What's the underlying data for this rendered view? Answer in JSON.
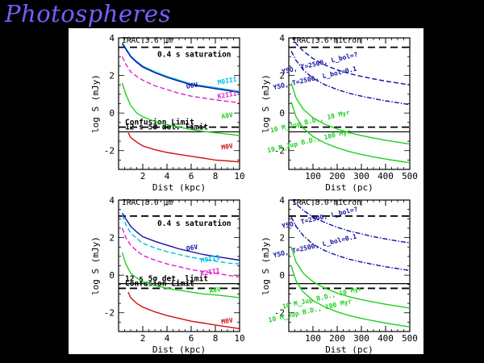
{
  "title": "Photospheres",
  "chart_data": [
    {
      "type": "line",
      "panel_title": "IRAC 3.6 μm",
      "xlabel": "Dist (kpc)",
      "ylabel": "log S (mJy)",
      "xlim": [
        0,
        10
      ],
      "ylim": [
        -3,
        4
      ],
      "xticks": [
        2,
        4,
        6,
        8,
        10
      ],
      "yticks": [
        -2,
        0,
        2,
        4
      ],
      "reference_lines": [
        {
          "label": "0.4 s saturation",
          "y": 3.5,
          "style": "dashed"
        },
        {
          "label": "Confusion Limit",
          "y": -0.75,
          "style": "dashed"
        },
        {
          "label": "12 s 5σ det. limit",
          "y": -1.0,
          "style": "solid"
        }
      ],
      "series": [
        {
          "name": "M0III",
          "color": "#00c0e8",
          "dash": "solid",
          "label_at": [
            9.0,
            1.6
          ],
          "x": [
            0.3,
            0.6,
            1,
            1.5,
            2,
            3,
            4,
            5,
            6,
            7,
            8,
            9,
            10
          ],
          "y": [
            3.75,
            3.45,
            3.05,
            2.75,
            2.5,
            2.2,
            1.95,
            1.75,
            1.55,
            1.45,
            1.35,
            1.25,
            1.15
          ]
        },
        {
          "name": "O6V",
          "color": "#1010a0",
          "dash": "solid",
          "label_at": [
            6.1,
            1.35
          ],
          "x": [
            0.3,
            0.6,
            1,
            1.5,
            2,
            3,
            4,
            5,
            6,
            7,
            8,
            9,
            10
          ],
          "y": [
            3.7,
            3.4,
            3.0,
            2.7,
            2.45,
            2.15,
            1.9,
            1.7,
            1.5,
            1.4,
            1.3,
            1.2,
            1.1
          ]
        },
        {
          "name": "K2III",
          "color": "#e020d0",
          "dash": "dashed",
          "label_at": [
            9.0,
            0.85
          ],
          "x": [
            0.3,
            0.6,
            1,
            1.5,
            2,
            3,
            4,
            5,
            6,
            7,
            8,
            9,
            10
          ],
          "y": [
            3.0,
            2.6,
            2.2,
            1.95,
            1.75,
            1.45,
            1.25,
            1.05,
            0.9,
            0.8,
            0.7,
            0.62,
            0.55
          ]
        },
        {
          "name": "A0V",
          "color": "#20d020",
          "dash": "solid",
          "label_at": [
            9.0,
            -0.25
          ],
          "x": [
            0.3,
            0.6,
            1,
            1.5,
            2,
            3,
            4,
            5,
            6,
            7,
            8,
            9,
            10
          ],
          "y": [
            1.6,
            1.0,
            0.4,
            0.0,
            -0.2,
            -0.45,
            -0.62,
            -0.75,
            -0.88,
            -0.98,
            -1.05,
            -1.12,
            -1.2
          ]
        },
        {
          "name": "M0V",
          "color": "#d01010",
          "dash": "solid",
          "label_at": [
            9.0,
            -1.9
          ],
          "x": [
            0.8,
            1,
            1.5,
            2,
            3,
            4,
            5,
            6,
            7,
            8,
            9,
            10
          ],
          "y": [
            -1.05,
            -1.3,
            -1.55,
            -1.75,
            -1.95,
            -2.1,
            -2.2,
            -2.3,
            -2.4,
            -2.5,
            -2.55,
            -2.6
          ]
        }
      ]
    },
    {
      "type": "line",
      "panel_title": "IRAC 3.6 micron",
      "xlabel": "Dist (pc)",
      "ylabel": "log S (mJy)",
      "xlim": [
        0,
        500
      ],
      "ylim": [
        -3,
        4
      ],
      "xticks": [
        100,
        200,
        300,
        400,
        500
      ],
      "yticks": [
        -2,
        0,
        2,
        4
      ],
      "reference_lines": [
        {
          "label": "",
          "y": 3.5,
          "style": "dashed"
        },
        {
          "label": "",
          "y": -0.75,
          "style": "dashed"
        },
        {
          "label": "",
          "y": -1.0,
          "style": "solid"
        }
      ],
      "series": [
        {
          "name": "YSO, T=2500, L_bol=?",
          "color": "#1010a0",
          "dash": "dashed",
          "label_at": [
            130,
            2.55
          ],
          "x": [
            10,
            30,
            60,
            100,
            150,
            200,
            250,
            300,
            350,
            400,
            450,
            500
          ],
          "y": [
            4.1,
            3.7,
            3.3,
            2.9,
            2.55,
            2.3,
            2.1,
            1.95,
            1.82,
            1.7,
            1.6,
            1.5
          ]
        },
        {
          "name": "YSO, T=2500, L_bol=0.1",
          "color": "#1010a0",
          "dash": "dashdot",
          "label_at": [
            110,
            1.75
          ],
          "x": [
            10,
            30,
            60,
            100,
            150,
            200,
            250,
            300,
            350,
            400,
            450,
            500
          ],
          "y": [
            3.3,
            2.8,
            2.3,
            1.85,
            1.5,
            1.25,
            1.05,
            0.9,
            0.77,
            0.65,
            0.55,
            0.45
          ]
        },
        {
          "name": "10 M_Jup B.D., 10 Myr",
          "color": "#20d020",
          "dash": "solid",
          "label_at": [
            90,
            -0.55
          ],
          "x": [
            10,
            30,
            60,
            100,
            150,
            200,
            250,
            300,
            350,
            400,
            450,
            500
          ],
          "y": [
            1.6,
            0.8,
            0.2,
            -0.25,
            -0.6,
            -0.85,
            -1.05,
            -1.2,
            -1.33,
            -1.45,
            -1.55,
            -1.65
          ]
        },
        {
          "name": "10 M_Jup B.D., 100 Myr",
          "color": "#20d020",
          "dash": "solid",
          "label_at": [
            85,
            -1.6
          ],
          "x": [
            10,
            30,
            60,
            100,
            150,
            200,
            250,
            300,
            350,
            400,
            450,
            500
          ],
          "y": [
            0.6,
            -0.2,
            -0.8,
            -1.25,
            -1.6,
            -1.85,
            -2.05,
            -2.2,
            -2.33,
            -2.45,
            -2.55,
            -2.65
          ]
        }
      ]
    },
    {
      "type": "line",
      "panel_title": "IRAC 8.0 μm",
      "xlabel": "Dist (kpc)",
      "ylabel": "log S (mJy)",
      "xlim": [
        0,
        10
      ],
      "ylim": [
        -3,
        4
      ],
      "xticks": [
        2,
        4,
        6,
        8,
        10
      ],
      "yticks": [
        -2,
        0,
        2,
        4
      ],
      "reference_lines": [
        {
          "label": "0.4 s saturation",
          "y": 3.15,
          "style": "dashed"
        },
        {
          "label": "12 s 5σ det. limit",
          "y": -0.45,
          "style": "solid"
        },
        {
          "label": "Confusion Limit",
          "y": -0.7,
          "style": "dashed"
        }
      ],
      "series": [
        {
          "name": "O6V",
          "color": "#1010a0",
          "dash": "solid",
          "label_at": [
            6.1,
            1.35
          ],
          "x": [
            0.3,
            0.6,
            1,
            1.5,
            2,
            3,
            4,
            5,
            6,
            7,
            8,
            9,
            10
          ],
          "y": [
            3.3,
            3.0,
            2.6,
            2.3,
            2.05,
            1.8,
            1.6,
            1.4,
            1.25,
            1.1,
            1.0,
            0.9,
            0.8
          ]
        },
        {
          "name": "M0III",
          "color": "#00c0e8",
          "dash": "dashed",
          "label_at": [
            7.6,
            0.75
          ],
          "x": [
            0.3,
            0.6,
            1,
            1.5,
            2,
            3,
            4,
            5,
            6,
            7,
            8,
            9,
            10
          ],
          "y": [
            3.2,
            2.7,
            2.25,
            1.95,
            1.7,
            1.45,
            1.25,
            1.1,
            0.95,
            0.85,
            0.75,
            0.65,
            0.6
          ]
        },
        {
          "name": "K2III",
          "color": "#e020d0",
          "dash": "dashed",
          "label_at": [
            7.6,
            0.05
          ],
          "x": [
            0.3,
            0.6,
            1,
            1.5,
            2,
            3,
            4,
            5,
            6,
            7,
            8,
            9,
            10
          ],
          "y": [
            2.5,
            2.0,
            1.6,
            1.3,
            1.05,
            0.8,
            0.6,
            0.45,
            0.3,
            0.2,
            0.1,
            0.0,
            -0.1
          ]
        },
        {
          "name": "A0V",
          "color": "#20d020",
          "dash": "solid",
          "label_at": [
            8.0,
            -0.9
          ],
          "x": [
            0.3,
            0.6,
            1,
            1.5,
            2,
            3,
            4,
            5,
            6,
            7,
            8,
            9,
            10
          ],
          "y": [
            1.2,
            0.6,
            0.1,
            -0.15,
            -0.35,
            -0.55,
            -0.7,
            -0.8,
            -0.9,
            -1.0,
            -1.05,
            -1.12,
            -1.2
          ]
        },
        {
          "name": "M0V",
          "color": "#d01010",
          "dash": "solid",
          "label_at": [
            9.0,
            -2.55
          ],
          "x": [
            0.8,
            1,
            1.5,
            2,
            3,
            4,
            5,
            6,
            7,
            8,
            9,
            10
          ],
          "y": [
            -0.9,
            -1.2,
            -1.5,
            -1.7,
            -1.95,
            -2.15,
            -2.3,
            -2.45,
            -2.55,
            -2.65,
            -2.75,
            -2.85
          ]
        }
      ]
    },
    {
      "type": "line",
      "panel_title": "IRAC 8.0 micron",
      "xlabel": "Dist (pc)",
      "ylabel": "log S (mJy)",
      "xlim": [
        0,
        500
      ],
      "ylim": [
        -3,
        4
      ],
      "xticks": [
        100,
        200,
        300,
        400,
        500
      ],
      "yticks": [
        -2,
        0,
        2,
        4
      ],
      "reference_lines": [
        {
          "label": "",
          "y": 3.15,
          "style": "dashed"
        },
        {
          "label": "",
          "y": -0.45,
          "style": "solid"
        },
        {
          "label": "",
          "y": -0.7,
          "style": "dashed"
        }
      ],
      "series": [
        {
          "name": "YSO, T=2500, L_bol=?",
          "color": "#1010a0",
          "dash": "dashdot",
          "label_at": [
            130,
            2.95
          ],
          "x": [
            10,
            30,
            60,
            100,
            150,
            200,
            250,
            300,
            350,
            400,
            450,
            500
          ],
          "y": [
            4.1,
            3.8,
            3.45,
            3.1,
            2.8,
            2.55,
            2.35,
            2.2,
            2.05,
            1.93,
            1.82,
            1.72
          ]
        },
        {
          "name": "YSO, T=2500, L_bol=0.1",
          "color": "#1010a0",
          "dash": "dashdot",
          "label_at": [
            110,
            1.45
          ],
          "x": [
            10,
            30,
            60,
            100,
            150,
            200,
            250,
            300,
            350,
            400,
            450,
            500
          ],
          "y": [
            3.1,
            2.6,
            2.1,
            1.65,
            1.3,
            1.05,
            0.85,
            0.7,
            0.57,
            0.45,
            0.35,
            0.25
          ]
        },
        {
          "name": "10 M_Jup B.D., 10 Myr",
          "color": "#20d020",
          "dash": "solid",
          "label_at": [
            140,
            -1.3
          ],
          "x": [
            10,
            30,
            60,
            100,
            150,
            200,
            250,
            300,
            350,
            400,
            450,
            500
          ],
          "y": [
            1.5,
            0.7,
            0.1,
            -0.35,
            -0.7,
            -0.95,
            -1.15,
            -1.3,
            -1.43,
            -1.55,
            -1.65,
            -1.75
          ]
        },
        {
          "name": "10 M_Jup B.D., 100 Myr",
          "color": "#20d020",
          "dash": "solid",
          "label_at": [
            90,
            -2.0
          ],
          "x": [
            10,
            30,
            60,
            100,
            150,
            200,
            250,
            300,
            350,
            400,
            450,
            500
          ],
          "y": [
            0.5,
            -0.3,
            -0.9,
            -1.35,
            -1.7,
            -1.95,
            -2.15,
            -2.3,
            -2.43,
            -2.55,
            -2.65,
            -2.75
          ]
        }
      ]
    }
  ]
}
